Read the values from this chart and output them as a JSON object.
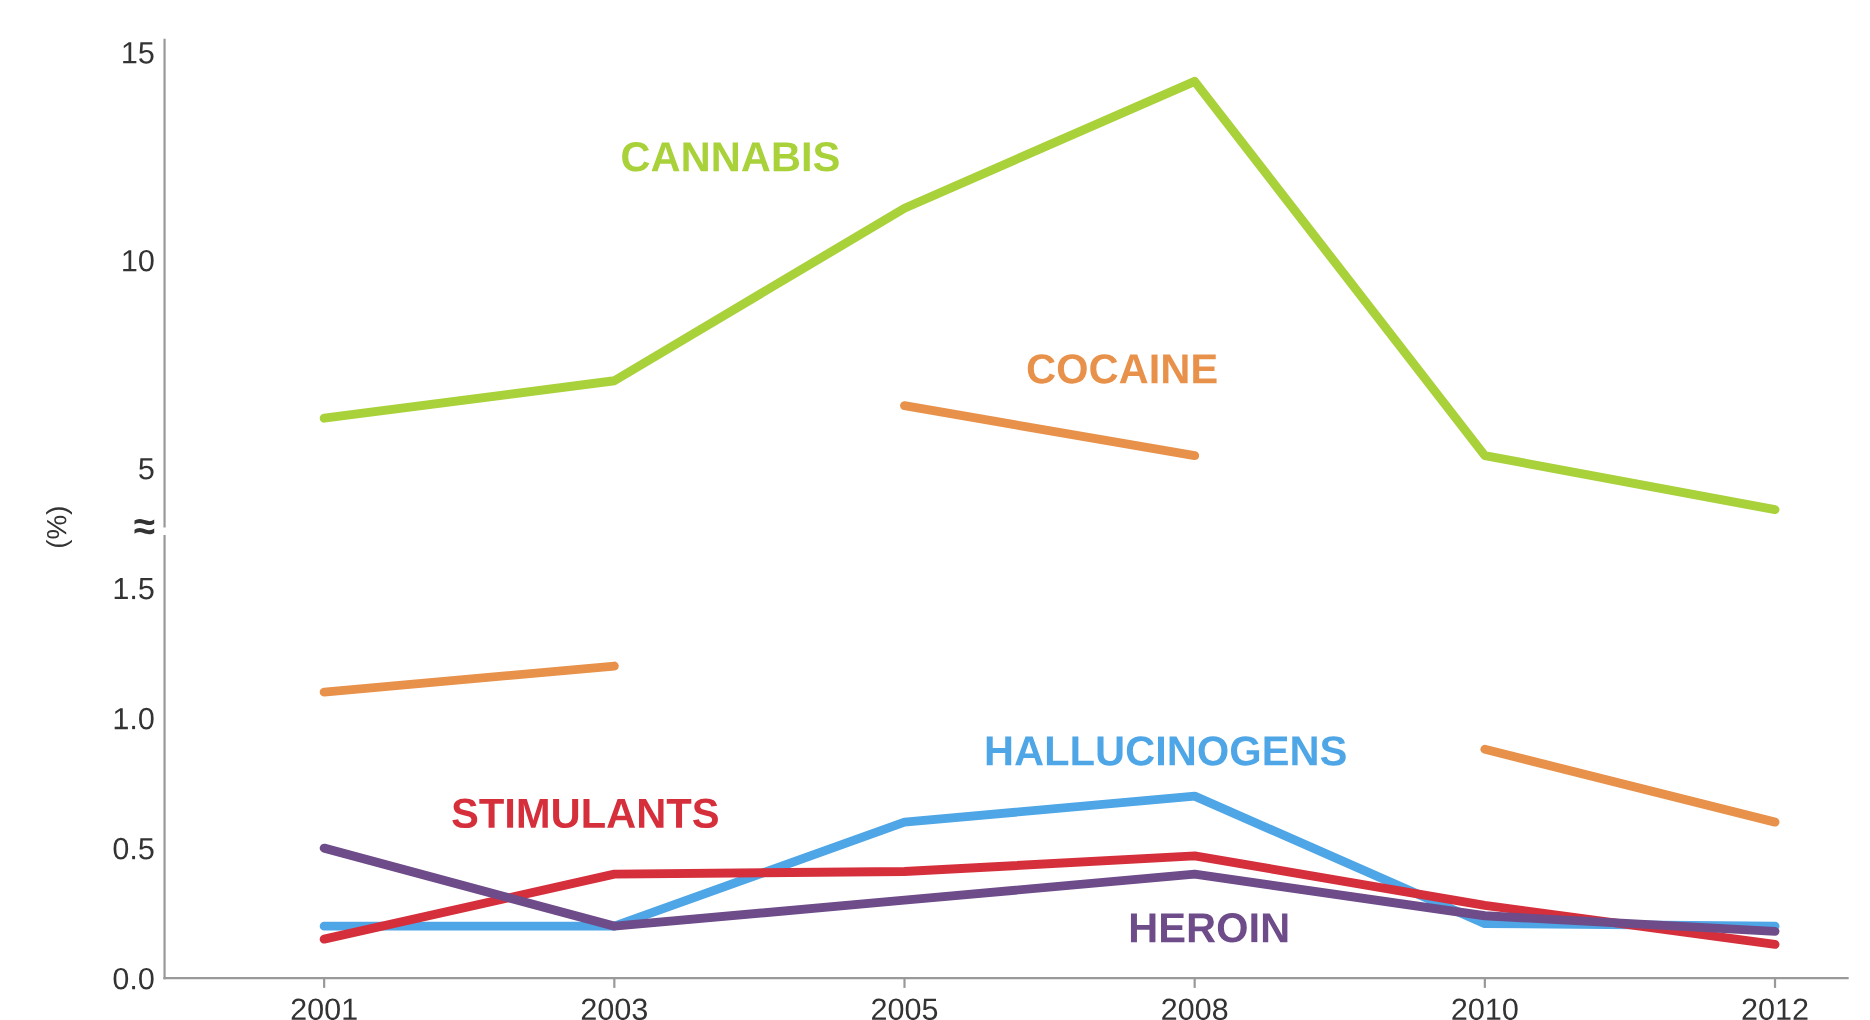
{
  "chart_data": [
    {
      "type": "line",
      "categories": [
        "2001",
        "2003",
        "2005",
        "2008",
        "2010",
        "2012"
      ],
      "series": [
        {
          "name": "CANNABIS",
          "color": "#a9d13a",
          "values": [
            6.2,
            7.1,
            11.25,
            14.3,
            5.3,
            4.0
          ]
        },
        {
          "name": "COCAINE",
          "color": "#e8914a",
          "values": [
            null,
            null,
            6.5,
            5.3,
            null,
            null
          ]
        }
      ],
      "ylim": [
        3.6,
        15.3
      ],
      "yticks": [
        5,
        10,
        15
      ],
      "tick_labels": "y",
      "grid": false,
      "legend": false,
      "marker": "none",
      "line_style": "solid"
    },
    {
      "type": "line",
      "ylabel": "(%)",
      "annotations": [
        "≈"
      ],
      "categories": [
        "2001",
        "2003",
        "2005",
        "2008",
        "2010",
        "2012"
      ],
      "series": [
        {
          "color": "#e8914a",
          "values": [
            1.1,
            1.2,
            null,
            null,
            0.88,
            0.6
          ]
        },
        {
          "name": "HALLUCINOGENS",
          "color": "#4ea6e6",
          "values": [
            0.2,
            0.2,
            0.6,
            0.7,
            0.21,
            0.2
          ]
        },
        {
          "name": "STIMULANTS",
          "color": "#d62f3c",
          "values": [
            0.15,
            0.4,
            0.41,
            0.47,
            0.28,
            0.13
          ]
        },
        {
          "name": "HEROIN",
          "color": "#6e4c8a",
          "values": [
            0.5,
            0.2,
            0.3,
            0.4,
            0.24,
            0.18
          ]
        }
      ],
      "ylim": [
        0,
        1.7
      ],
      "yticks": [
        {
          "value": 0,
          "label": "0.0"
        },
        0.5,
        {
          "value": 1,
          "label": "1.0"
        },
        1.5
      ],
      "grid": false,
      "legend": false,
      "marker": "none",
      "line_style": "solid"
    }
  ]
}
